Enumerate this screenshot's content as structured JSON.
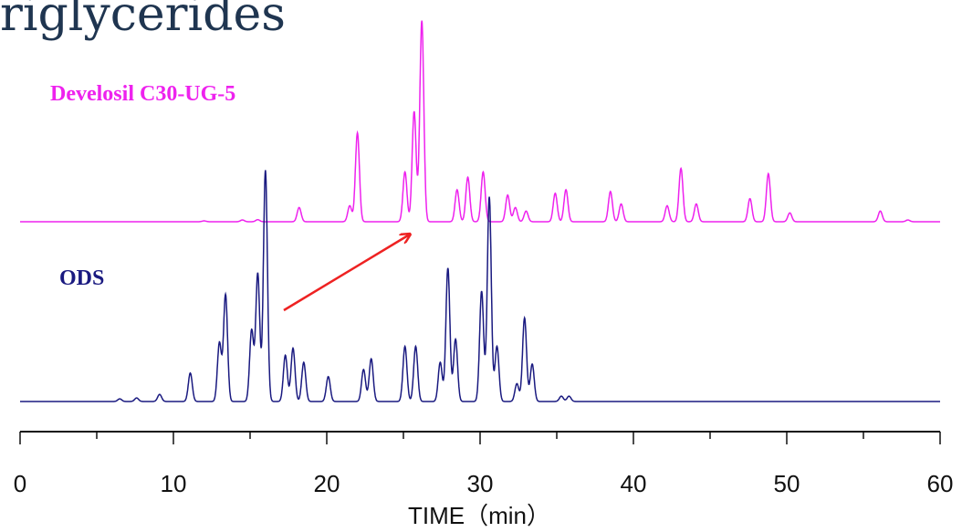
{
  "title": "riglycerides",
  "colors": {
    "upper": "#ee22ee",
    "lower": "#1a1a80",
    "arrow": "#ee2222",
    "axis": "#111111"
  },
  "chart_data": {
    "type": "line",
    "title": "riglycerides",
    "xlabel": "TIME（min）",
    "ylabel": "",
    "xlim": [
      0,
      60
    ],
    "ylim": [
      0,
      100
    ],
    "xticks": [
      0,
      10,
      20,
      30,
      40,
      50,
      60
    ],
    "xtick_labels": [
      "0",
      "10",
      "20",
      "30",
      "40",
      "50",
      "60"
    ],
    "grid": false,
    "series": [
      {
        "name": "Develosil C30-UG-5",
        "color": "#ee22ee",
        "x_range": [
          0,
          60
        ],
        "peaks": [
          {
            "t": 12.0,
            "h": 0.5
          },
          {
            "t": 14.5,
            "h": 1
          },
          {
            "t": 15.5,
            "h": 1.2
          },
          {
            "t": 18.2,
            "h": 8
          },
          {
            "t": 21.5,
            "h": 9
          },
          {
            "t": 22.0,
            "h": 50
          },
          {
            "t": 25.1,
            "h": 28
          },
          {
            "t": 25.7,
            "h": 62
          },
          {
            "t": 26.2,
            "h": 113
          },
          {
            "t": 28.5,
            "h": 18
          },
          {
            "t": 29.2,
            "h": 25
          },
          {
            "t": 30.2,
            "h": 28
          },
          {
            "t": 31.8,
            "h": 15
          },
          {
            "t": 32.3,
            "h": 8
          },
          {
            "t": 33.0,
            "h": 6
          },
          {
            "t": 34.9,
            "h": 16
          },
          {
            "t": 35.6,
            "h": 18
          },
          {
            "t": 38.5,
            "h": 17
          },
          {
            "t": 39.2,
            "h": 10
          },
          {
            "t": 42.2,
            "h": 9
          },
          {
            "t": 43.1,
            "h": 30
          },
          {
            "t": 44.1,
            "h": 10
          },
          {
            "t": 47.6,
            "h": 13
          },
          {
            "t": 48.8,
            "h": 27
          },
          {
            "t": 50.2,
            "h": 5
          },
          {
            "t": 56.1,
            "h": 6
          },
          {
            "t": 57.9,
            "h": 1
          }
        ]
      },
      {
        "name": "ODS",
        "color": "#1a1a80",
        "x_range": [
          6,
          38.5
        ],
        "peaks": [
          {
            "t": 6.5,
            "h": 1.5
          },
          {
            "t": 7.6,
            "h": 2
          },
          {
            "t": 9.1,
            "h": 4
          },
          {
            "t": 11.1,
            "h": 16
          },
          {
            "t": 13.0,
            "h": 33
          },
          {
            "t": 13.4,
            "h": 60
          },
          {
            "t": 15.1,
            "h": 40
          },
          {
            "t": 15.5,
            "h": 72
          },
          {
            "t": 16.0,
            "h": 130
          },
          {
            "t": 17.3,
            "h": 26
          },
          {
            "t": 17.8,
            "h": 30
          },
          {
            "t": 18.5,
            "h": 22
          },
          {
            "t": 20.1,
            "h": 14
          },
          {
            "t": 22.4,
            "h": 18
          },
          {
            "t": 22.9,
            "h": 24
          },
          {
            "t": 25.1,
            "h": 31
          },
          {
            "t": 25.8,
            "h": 31
          },
          {
            "t": 27.4,
            "h": 22
          },
          {
            "t": 27.9,
            "h": 75
          },
          {
            "t": 28.4,
            "h": 35
          },
          {
            "t": 30.1,
            "h": 62
          },
          {
            "t": 30.6,
            "h": 115
          },
          {
            "t": 31.1,
            "h": 31
          },
          {
            "t": 32.4,
            "h": 10
          },
          {
            "t": 32.9,
            "h": 47
          },
          {
            "t": 33.4,
            "h": 21
          },
          {
            "t": 35.3,
            "h": 3
          },
          {
            "t": 35.8,
            "h": 3
          }
        ]
      }
    ],
    "annotations": [
      {
        "type": "arrow",
        "from": {
          "t": 17.2
        },
        "to": {
          "t": 25.4
        },
        "color": "#ee2222"
      }
    ]
  }
}
